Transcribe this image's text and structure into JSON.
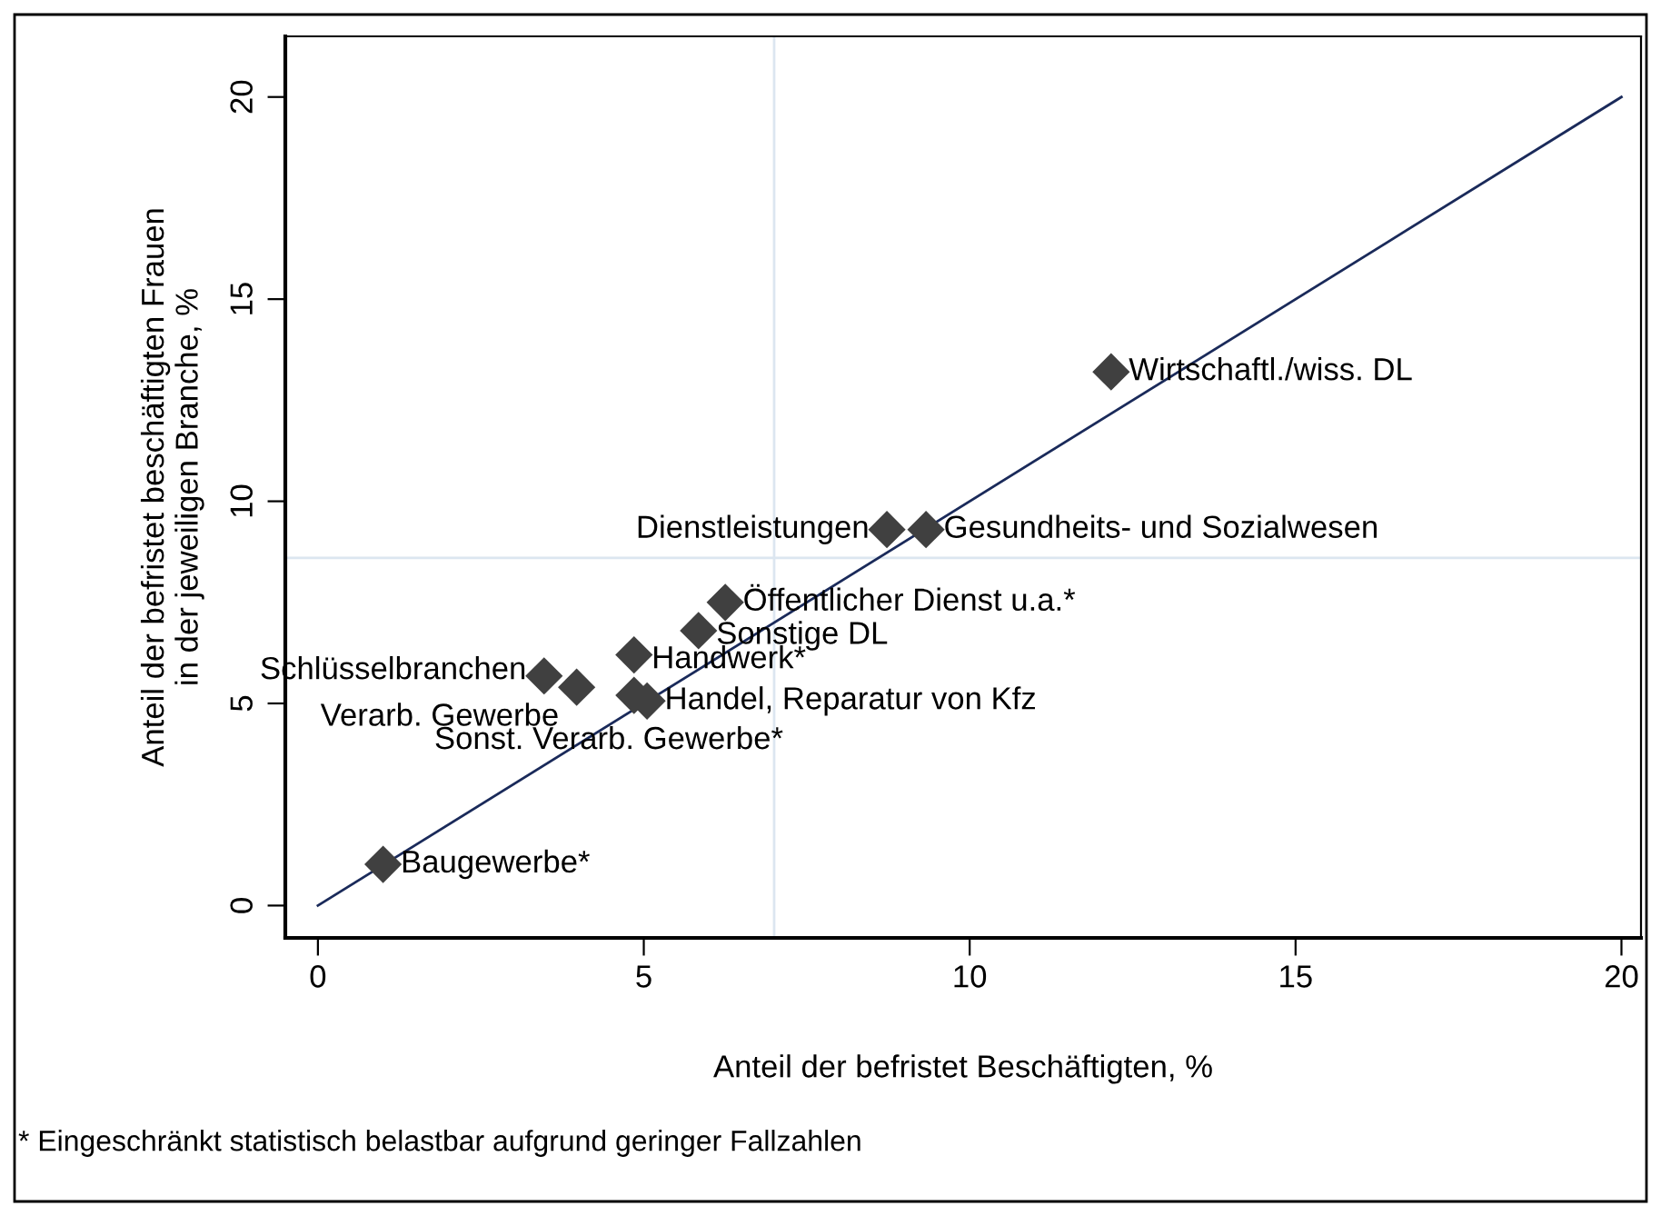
{
  "chart_data": {
    "type": "scatter",
    "xlabel": "Anteil der befristet Beschäftigten, %",
    "ylabel": "Anteil der befristet beschäftigten Frauen\nin der jeweiligen Branche, %",
    "series": [
      {
        "color": "#404040",
        "marker": "diamond",
        "x": [
          12.17,
          9.33,
          8.73,
          6.25,
          5.84,
          4.85,
          3.47,
          3.97,
          4.85,
          5.05,
          1.0
        ],
        "values": [
          13.2,
          9.3,
          9.3,
          7.5,
          6.8,
          6.2,
          5.68,
          5.4,
          5.2,
          5.06,
          1.02
        ]
      },
      {
        "type": "line",
        "color": "#1a2a5a",
        "x": [
          0,
          20
        ],
        "values": [
          0,
          20
        ]
      }
    ],
    "annotations": [
      {
        "text": "Wirtschaftl./wiss. DL",
        "x": 12.17,
        "y": 13.2
      },
      {
        "text": "Gesundheits- und Sozialwesen",
        "x": 9.33,
        "y": 9.3
      },
      {
        "text": "Dienstleistungen",
        "x": 8.73,
        "y": 9.3
      },
      {
        "text": "Öffentlicher Dienst u.a.*",
        "x": 6.25,
        "y": 7.5
      },
      {
        "text": "Sonstige DL",
        "x": 5.84,
        "y": 6.8
      },
      {
        "text": "Handwerk*",
        "x": 4.85,
        "y": 6.2
      },
      {
        "text": "Schlüsselbranchen",
        "x": 3.47,
        "y": 5.68
      },
      {
        "text": "Verarb. Gewerbe",
        "x": 3.97,
        "y": 5.4
      },
      {
        "text": "Sonst. Verarb. Gewerbe*",
        "x": 4.85,
        "y": 5.2
      },
      {
        "text": "Handel, Reparatur von Kfz",
        "x": 5.05,
        "y": 5.06
      },
      {
        "text": "Baugewerbe*",
        "x": 1.0,
        "y": 1.02
      },
      "* Eingeschränkt statistisch belastbar aufgrund geringer Fallzahlen"
    ],
    "ref_lines": [
      {
        "axis": "x",
        "value": 7,
        "color": "#dce6f0"
      },
      {
        "axis": "y",
        "value": 8.6,
        "color": "#dce6f0"
      }
    ],
    "xlim": [
      -0.5,
      20.3
    ],
    "ylim": [
      -0.8,
      21.5
    ],
    "xticks": [
      0,
      5,
      10,
      15,
      20
    ],
    "yticks": [
      0,
      5,
      10,
      15,
      20
    ],
    "grid": false,
    "legend": false
  }
}
